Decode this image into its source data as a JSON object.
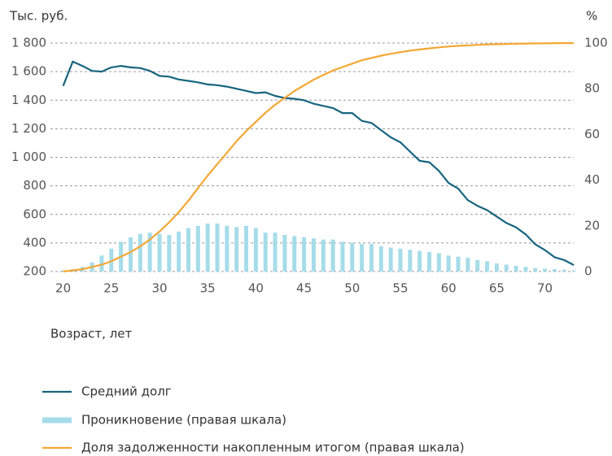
{
  "chart_data": {
    "type": "combo",
    "y_label": "Тыс. руб.",
    "y2_label": "%",
    "x_label": "Возраст, лет",
    "x": [
      20,
      21,
      22,
      23,
      24,
      25,
      26,
      27,
      28,
      29,
      30,
      31,
      32,
      33,
      34,
      35,
      36,
      37,
      38,
      39,
      40,
      41,
      42,
      43,
      44,
      45,
      46,
      47,
      48,
      49,
      50,
      51,
      52,
      53,
      54,
      55,
      56,
      57,
      58,
      59,
      60,
      61,
      62,
      63,
      64,
      65,
      66,
      67,
      68,
      69,
      70,
      71,
      72,
      73
    ],
    "xlim": [
      17.5,
      73.5
    ],
    "xticks": [
      20,
      25,
      30,
      35,
      40,
      45,
      50,
      55,
      60,
      65,
      70
    ],
    "ylim": [
      200,
      1800
    ],
    "yticks": [
      200,
      400,
      600,
      800,
      {
        "value": 1000,
        "label": "1 000"
      },
      {
        "value": 1200,
        "label": "1 200"
      },
      {
        "value": 1400,
        "label": "1 400"
      },
      {
        "value": 1600,
        "label": "1 600"
      },
      {
        "value": 1800,
        "label": "1 800"
      }
    ],
    "y2lim": [
      0,
      100
    ],
    "y2ticks": [
      0,
      20,
      40,
      60,
      80,
      100
    ],
    "grid": true,
    "series": [
      {
        "name": "Средний долг",
        "type": "line",
        "color": "#17657f",
        "values": [
          1500,
          1670,
          1640,
          1605,
          1600,
          1630,
          1640,
          1630,
          1625,
          1605,
          1570,
          1565,
          1545,
          1535,
          1525,
          1510,
          1505,
          1495,
          1480,
          1465,
          1450,
          1455,
          1430,
          1415,
          1410,
          1400,
          1375,
          1360,
          1345,
          1310,
          1310,
          1255,
          1240,
          1190,
          1140,
          1105,
          1040,
          975,
          965,
          905,
          820,
          780,
          700,
          660,
          630,
          585,
          540,
          510,
          460,
          390,
          350,
          300,
          280,
          245
        ]
      },
      {
        "name": "Проникновение (правая шкала)",
        "type": "bar",
        "axis": "y2",
        "color": "#a6dcea",
        "values": [
          0.5,
          1,
          2,
          4,
          7,
          10,
          13,
          15,
          16.5,
          17,
          16.5,
          16,
          17.5,
          19,
          20,
          21,
          21,
          20,
          19.5,
          20,
          19,
          17,
          17,
          16,
          15.5,
          15,
          14.5,
          14,
          14,
          13,
          12.5,
          12,
          12,
          11,
          10.5,
          10,
          9.5,
          9,
          8.5,
          8,
          7,
          6.5,
          6,
          5,
          4.5,
          3.5,
          3,
          2.5,
          2,
          1.5,
          1.2,
          1,
          0.8,
          0.5
        ]
      },
      {
        "name": "Доля задолженности накопленным итогом (правая шкала)",
        "type": "line",
        "axis": "y2",
        "color": "#f4a733",
        "values": [
          0,
          0.5,
          1,
          2,
          3,
          4.5,
          6.5,
          8.5,
          11,
          14,
          17.5,
          21.5,
          26,
          31,
          36.5,
          42,
          47,
          52,
          57,
          61.5,
          65.5,
          69.5,
          73,
          76,
          79,
          81.5,
          84,
          86,
          88,
          89.5,
          91,
          92.5,
          93.5,
          94.5,
          95.3,
          96,
          96.7,
          97.2,
          97.7,
          98.1,
          98.5,
          98.8,
          99,
          99.2,
          99.4,
          99.5,
          99.6,
          99.7,
          99.8,
          99.85,
          99.9,
          99.95,
          100,
          100
        ]
      }
    ]
  }
}
